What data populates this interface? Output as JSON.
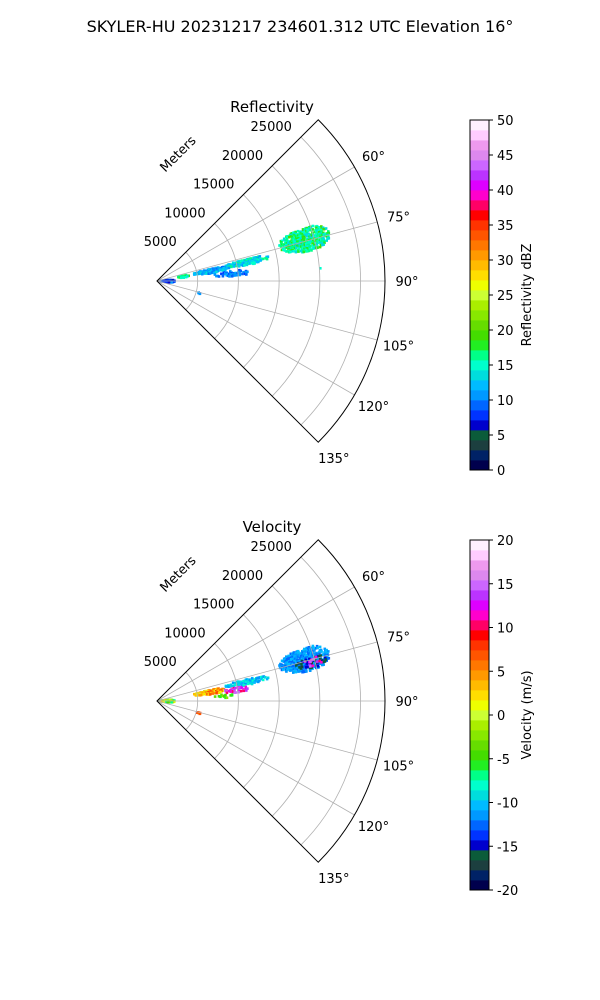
{
  "figure_title": "SKYLER-HU  20231217  234601.312 UTC Elevation 16°",
  "chart_data": [
    {
      "type": "heatmap",
      "title": "Reflectivity",
      "projection": "polar-sector",
      "radial_label": "Meters",
      "radial_ticks": [
        5000,
        10000,
        15000,
        20000,
        25000
      ],
      "azimuth_ticks": [
        "60°",
        "75°",
        "90°",
        "105°",
        "120°",
        "135°"
      ],
      "azimuth_range_deg": [
        45,
        135
      ],
      "range_max_m": 28000,
      "grid": true,
      "colorbar": {
        "label": "Reflectivity dBZ",
        "range": [
          0,
          50
        ],
        "ticks": [
          0,
          5,
          10,
          15,
          20,
          25,
          30,
          35,
          40,
          45,
          50
        ],
        "palette": [
          "#00004d",
          "#002266",
          "#1c3f3f",
          "#0b5c3a",
          "#0000cc",
          "#0033ff",
          "#0066ff",
          "#0099ff",
          "#00bbff",
          "#00dddd",
          "#00ffcc",
          "#00ff88",
          "#22ee22",
          "#44dd00",
          "#66dd00",
          "#88e800",
          "#aaee00",
          "#ccff33",
          "#eeff00",
          "#ffdd00",
          "#ffbb00",
          "#ff9900",
          "#ff7700",
          "#ff5500",
          "#ff3300",
          "#ff0000",
          "#ff0066",
          "#ff00cc",
          "#dd00ff",
          "#bb33ff",
          "#cc66ff",
          "#dd88ee",
          "#ee99ee",
          "#ffccff",
          "#fff0ff"
        ]
      },
      "echoes": [
        {
          "az": [
            70,
            79
          ],
          "r_m": [
            15500,
            22000
          ],
          "value_range": [
            13,
            19
          ],
          "density": 0.85
        },
        {
          "az": [
            76,
            80
          ],
          "r_m": [
            8500,
            14000
          ],
          "value_range": [
            11,
            17
          ],
          "density": 0.7
        },
        {
          "az": [
            77,
            82
          ],
          "r_m": [
            4500,
            9000
          ],
          "value_range": [
            9,
            14
          ],
          "density": 0.75
        },
        {
          "az": [
            82,
            87
          ],
          "r_m": [
            7000,
            11500
          ],
          "value_range": [
            8,
            12
          ],
          "density": 0.3
        },
        {
          "az": [
            78,
            83
          ],
          "r_m": [
            2500,
            4000
          ],
          "value_range": [
            14,
            18
          ],
          "density": 0.4
        },
        {
          "az": [
            84,
            97
          ],
          "r_m": [
            200,
            2200
          ],
          "value_range": [
            5,
            11
          ],
          "density": 0.55
        },
        {
          "az": [
            85,
            86
          ],
          "r_m": [
            19000,
            20500
          ],
          "value_range": [
            15,
            16
          ],
          "density": 0.2
        },
        {
          "az": [
            105,
            107
          ],
          "r_m": [
            5000,
            5700
          ],
          "value_range": [
            9,
            11
          ],
          "density": 0.6
        }
      ]
    },
    {
      "type": "heatmap",
      "title": "Velocity",
      "projection": "polar-sector",
      "radial_label": "Meters",
      "radial_ticks": [
        5000,
        10000,
        15000,
        20000,
        25000
      ],
      "azimuth_ticks": [
        "60°",
        "75°",
        "90°",
        "105°",
        "120°",
        "135°"
      ],
      "azimuth_range_deg": [
        45,
        135
      ],
      "range_max_m": 28000,
      "grid": true,
      "colorbar": {
        "label": "Velocity (m/s)",
        "range": [
          -20,
          20
        ],
        "ticks": [
          -20,
          -15,
          -10,
          -5,
          0,
          5,
          10,
          15,
          20
        ],
        "palette": [
          "#00004d",
          "#002266",
          "#1c3f3f",
          "#0b5c3a",
          "#0000cc",
          "#0033ff",
          "#0066ff",
          "#0099ff",
          "#00bbff",
          "#00dddd",
          "#00ffcc",
          "#00ff88",
          "#22ee22",
          "#44dd00",
          "#66dd00",
          "#88e800",
          "#aaee00",
          "#ccff33",
          "#eeff00",
          "#ffdd00",
          "#ffbb00",
          "#ff9900",
          "#ff7700",
          "#ff5500",
          "#ff3300",
          "#ff0000",
          "#ff0066",
          "#ff00cc",
          "#dd00ff",
          "#bb33ff",
          "#cc66ff",
          "#dd88ee",
          "#ee99ee",
          "#ffccff",
          "#fff0ff"
        ]
      },
      "echoes": [
        {
          "az": [
            70,
            79
          ],
          "r_m": [
            15500,
            22000
          ],
          "value_range": [
            -13,
            -10
          ],
          "density": 0.85
        },
        {
          "az": [
            74,
            78
          ],
          "r_m": [
            17500,
            21500
          ],
          "value_range": [
            -17,
            -14
          ],
          "density": 0.35
        },
        {
          "az": [
            74,
            78
          ],
          "r_m": [
            18500,
            21000
          ],
          "value_range": [
            10,
            15
          ],
          "density": 0.25
        },
        {
          "az": [
            76,
            80
          ],
          "r_m": [
            8500,
            14000
          ],
          "value_range": [
            -12,
            -8
          ],
          "density": 0.6
        },
        {
          "az": [
            78,
            83
          ],
          "r_m": [
            4500,
            8500
          ],
          "value_range": [
            0,
            8
          ],
          "density": 0.8
        },
        {
          "az": [
            80,
            84
          ],
          "r_m": [
            8000,
            11500
          ],
          "value_range": [
            10,
            16
          ],
          "density": 0.45
        },
        {
          "az": [
            84,
            88
          ],
          "r_m": [
            7000,
            9500
          ],
          "value_range": [
            -6,
            -2
          ],
          "density": 0.3
        },
        {
          "az": [
            84,
            97
          ],
          "r_m": [
            200,
            2200
          ],
          "value_range": [
            -8,
            4
          ],
          "density": 0.55
        },
        {
          "az": [
            105,
            107
          ],
          "r_m": [
            5000,
            5700
          ],
          "value_range": [
            5,
            8
          ],
          "density": 0.6
        }
      ]
    }
  ]
}
